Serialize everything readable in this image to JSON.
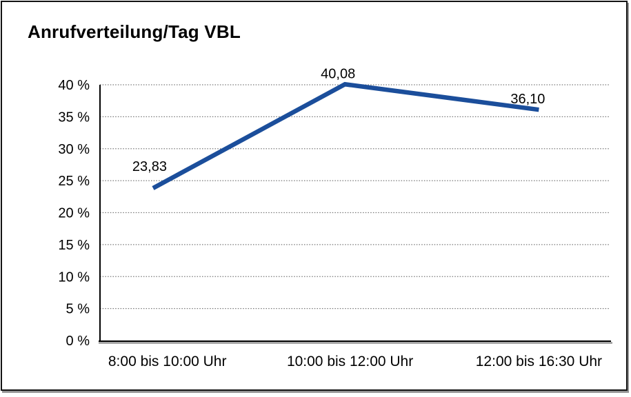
{
  "chart_data": {
    "type": "line",
    "title": "Anrufverteilung/Tag VBL",
    "categories": [
      "8:00 bis 10:00 Uhr",
      "10:00 bis 12:00 Uhr",
      "12:00 bis 16:30 Uhr"
    ],
    "values": [
      23.83,
      40.08,
      36.1
    ],
    "point_labels": [
      "23,83",
      "40,08",
      "36,10"
    ],
    "y_ticks": [
      {
        "value": 0,
        "label": "0 %"
      },
      {
        "value": 5,
        "label": "5 %"
      },
      {
        "value": 10,
        "label": "10 %"
      },
      {
        "value": 15,
        "label": "15 %"
      },
      {
        "value": 20,
        "label": "20 %"
      },
      {
        "value": 25,
        "label": "25 %"
      },
      {
        "value": 30,
        "label": "30 %"
      },
      {
        "value": 35,
        "label": "35 %"
      },
      {
        "value": 40,
        "label": "40 %"
      }
    ],
    "ylim": [
      0,
      40
    ],
    "xlabel": "",
    "ylabel": "",
    "grid": "horizontal-dotted",
    "legend_position": "none",
    "colors": {
      "line": "#1B4E9B",
      "grid": "#777777",
      "axis": "#000000",
      "axis_shadow": "#999999",
      "text": "#000000",
      "background": "#FFFFFF",
      "frame_border": "#121212",
      "frame_shadow": "#828282"
    }
  }
}
